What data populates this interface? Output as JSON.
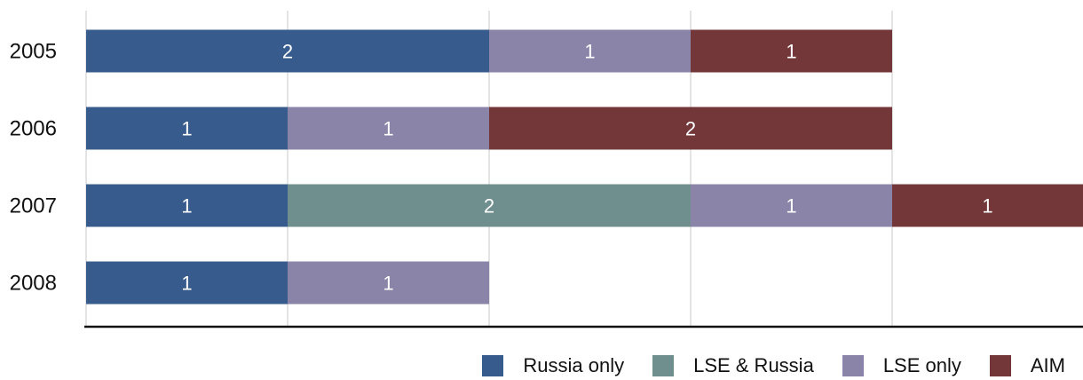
{
  "chart_data": {
    "type": "bar",
    "orientation": "horizontal",
    "stacked": true,
    "categories": [
      "2005",
      "2006",
      "2007",
      "2008"
    ],
    "series": [
      {
        "name": "Russia only",
        "color": "#385b8e",
        "values": [
          2,
          1,
          1,
          1
        ]
      },
      {
        "name": "LSE & Russia",
        "color": "#6e8f8e",
        "values": [
          0,
          0,
          2,
          0
        ]
      },
      {
        "name": "LSE only",
        "color": "#8a84a8",
        "values": [
          1,
          1,
          1,
          1
        ]
      },
      {
        "name": "AIM",
        "color": "#73373a",
        "values": [
          1,
          2,
          1,
          0
        ]
      }
    ],
    "xlim": [
      0,
      5
    ],
    "xlabel": "",
    "ylabel": "",
    "title": "",
    "grid": "vertical",
    "legend": "bottom-right"
  }
}
